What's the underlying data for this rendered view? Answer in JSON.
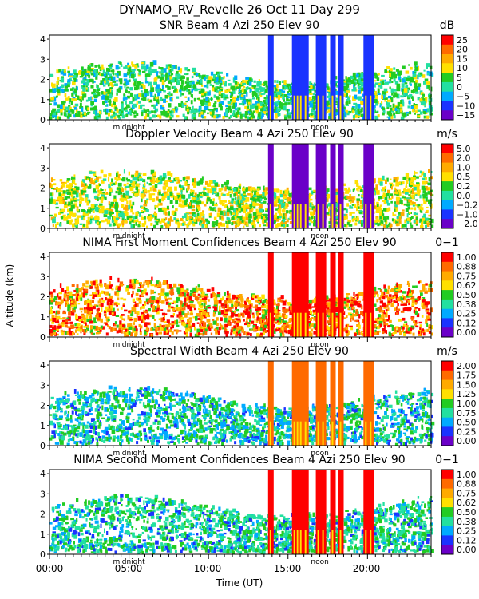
{
  "header": {
    "title": "DYNAMO_RV_Revelle  26 Oct 11 Day 299"
  },
  "axes": {
    "ylabel": "Altitude (km)",
    "xlabel": "Time (UT)",
    "x_ticks": [
      "00:00",
      "05:00",
      "10:00",
      "15:00",
      "20:00"
    ],
    "x_tick_hours": [
      0,
      5,
      10,
      15,
      20
    ],
    "x_range_hours": [
      0,
      24
    ],
    "y_ticks": [
      "0",
      "1",
      "2",
      "3",
      "4"
    ],
    "y_range_km": [
      0,
      4.2
    ],
    "midnight_label": "midnight",
    "noon_label": "noon",
    "midnight_hour": 5.0,
    "noon_hour": 17.0
  },
  "chart_data": [
    {
      "type": "heatmap",
      "title": "SNR Beam 4 Azi 250 Elev 90",
      "unit": "dB",
      "colorbar_ticks": [
        "25",
        "20",
        "15",
        "10",
        "5",
        "0",
        "−5",
        "−10",
        "−15"
      ],
      "colorbar_values": [
        25,
        20,
        15,
        10,
        5,
        0,
        -5,
        -10,
        -15
      ],
      "range": [
        -17,
        28
      ]
    },
    {
      "type": "heatmap",
      "title": "Doppler Velocity Beam 4 Azi 250 Elev 90",
      "unit": "m/s",
      "colorbar_ticks": [
        "5.0",
        "2.0",
        "1.0",
        "0.5",
        "0.2",
        "0.0",
        "−0.2",
        "−1.0",
        "−2.0"
      ],
      "colorbar_values": [
        5.0,
        2.0,
        1.0,
        0.5,
        0.2,
        0.0,
        -0.2,
        -1.0,
        -2.0
      ],
      "range": [
        -2.5,
        5.5
      ]
    },
    {
      "type": "heatmap",
      "title": "NIMA First Moment Confidences Beam 4 Azi 250 Elev 90",
      "unit": "0−1",
      "colorbar_ticks": [
        "1.00",
        "0.88",
        "0.75",
        "0.62",
        "0.50",
        "0.38",
        "0.25",
        "0.12",
        "0.00"
      ],
      "colorbar_values": [
        1.0,
        0.88,
        0.75,
        0.62,
        0.5,
        0.38,
        0.25,
        0.12,
        0.0
      ],
      "range": [
        0,
        1
      ]
    },
    {
      "type": "heatmap",
      "title": "Spectral Width Beam 4 Azi 250 Elev 90",
      "unit": "m/s",
      "colorbar_ticks": [
        "2.00",
        "1.75",
        "1.50",
        "1.25",
        "1.00",
        "0.75",
        "0.50",
        "0.25",
        "0.00"
      ],
      "colorbar_values": [
        2.0,
        1.75,
        1.5,
        1.25,
        1.0,
        0.75,
        0.5,
        0.25,
        0.0
      ],
      "range": [
        0,
        2
      ]
    },
    {
      "type": "heatmap",
      "title": "NIMA Second Moment Confidences Beam 4 Azi 250 Elev 90",
      "unit": "0−1",
      "colorbar_ticks": [
        "1.00",
        "0.88",
        "0.75",
        "0.62",
        "0.50",
        "0.38",
        "0.25",
        "0.12",
        "0.00"
      ],
      "colorbar_values": [
        1.0,
        0.88,
        0.75,
        0.62,
        0.5,
        0.38,
        0.25,
        0.12,
        0.0
      ],
      "range": [
        0,
        1
      ]
    }
  ],
  "colorbar_colors": [
    "#ff0000",
    "#ff6a00",
    "#ffaa00",
    "#ffe000",
    "#22cc22",
    "#22e0a0",
    "#00aaff",
    "#1a33ff",
    "#6a00c8"
  ],
  "echo_hours": [
    13.9,
    15.4,
    15.6,
    15.8,
    16.1,
    16.9,
    17.2,
    17.8,
    18.3,
    19.9,
    20.2
  ]
}
